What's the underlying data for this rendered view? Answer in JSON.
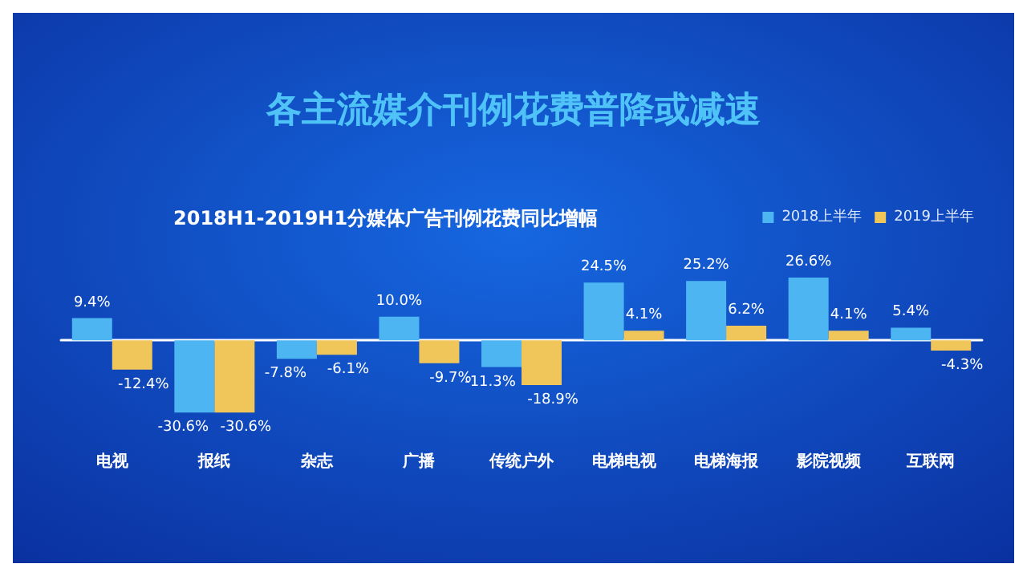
{
  "chart_data": {
    "type": "bar",
    "title": "各主流媒介刊例花费普降或减速",
    "subtitle": "2018H1-2019H1分媒体广告刊例花费同比增幅",
    "categories": [
      "电视",
      "报纸",
      "杂志",
      "广播",
      "传统户外",
      "电梯电视",
      "电梯海报",
      "影院视频",
      "互联网"
    ],
    "series": [
      {
        "name": "2018上半年",
        "color": "#4db6f2",
        "values": [
          9.4,
          -30.6,
          -7.8,
          10.0,
          -11.3,
          24.5,
          25.2,
          26.6,
          5.4
        ],
        "value_labels": [
          "9.4%",
          "-30.6%",
          "-7.8%",
          "10.0%",
          "-11.3%",
          "24.5%",
          "25.2%",
          "26.6%",
          "5.4%"
        ]
      },
      {
        "name": "2019上半年",
        "color": "#f0c65a",
        "values": [
          -12.4,
          -30.6,
          -6.1,
          -9.7,
          -18.9,
          4.1,
          6.2,
          4.1,
          -4.3
        ],
        "value_labels": [
          "-12.4%",
          "-30.6%",
          "-6.1%",
          "-9.7%",
          "-18.9%",
          "4.1%",
          "6.2%",
          "4.1%",
          "-4.3%"
        ]
      }
    ],
    "legend": "top right"
  }
}
